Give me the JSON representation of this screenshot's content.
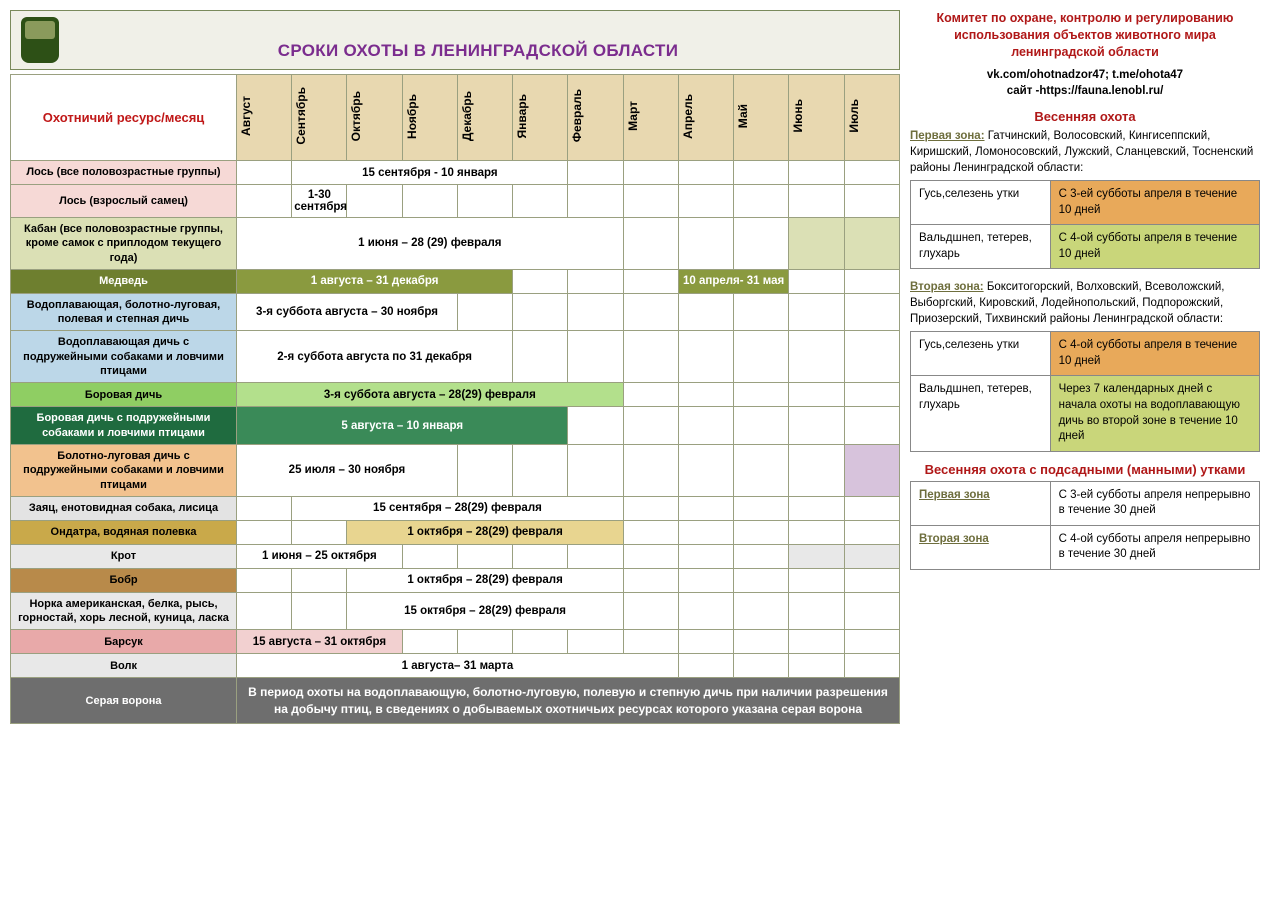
{
  "header": {
    "title": "СРОКИ ОХОТЫ В ЛЕНИНГРАДСКОЙ ОБЛАСТИ",
    "resource_head": "Охотничий ресурс/месяц"
  },
  "months": [
    "Август",
    "Сентябрь",
    "Октябрь",
    "Ноябрь",
    "Декабрь",
    "Январь",
    "Февраль",
    "Март",
    "Апрель",
    "Май",
    "Июнь",
    "Июль"
  ],
  "month_colors": [
    "#e8d8b0",
    "#e8d8b0",
    "#e8d8b0",
    "#e8d8b0",
    "#e8d8b0",
    "#e8d8b0",
    "#e8d8b0",
    "#e8d8b0",
    "#e8d8b0",
    "#e8d8b0",
    "#e8d8b0",
    "#e8d8b0"
  ],
  "rows": [
    {
      "name": "Лось (все половозрастные группы)",
      "label_bg": "#f6d9d6",
      "periods": [
        {
          "start": 1,
          "span": 5,
          "text": "15 сентября - 10 января",
          "bg": "#ffffff"
        }
      ],
      "empty": [
        0,
        6,
        7,
        8,
        9,
        10,
        11
      ]
    },
    {
      "name": "Лось (взрослый самец)",
      "label_bg": "#f6d9d6",
      "periods": [
        {
          "start": 1,
          "span": 1,
          "text": "1-30 сентября",
          "bg": "#ffffff"
        }
      ],
      "empty": [
        0,
        2,
        3,
        4,
        5,
        6,
        7,
        8,
        9,
        10,
        11
      ]
    },
    {
      "name": "Кабан (все половозрастные группы, кроме самок с приплодом текущего года)",
      "label_bg": "#dbe0b5",
      "periods": [
        {
          "start": 0,
          "span": 7,
          "text": "1 июня – 28 (29) февраля",
          "bg": "#ffffff"
        }
      ],
      "empty": [
        7,
        8,
        9
      ],
      "empty_colored": [
        {
          "idx": 10,
          "bg": "#dbe0b5"
        },
        {
          "idx": 11,
          "bg": "#dbe0b5"
        }
      ]
    },
    {
      "name": "Медведь",
      "label_bg": "#6e7f2f",
      "label_color": "#ffffff",
      "periods": [
        {
          "start": 0,
          "span": 5,
          "text": "1 августа – 31 декабря",
          "bg": "#8a9a3f",
          "color": "#fff"
        },
        {
          "start": 8,
          "span": 2,
          "text": "10 апреля- 31 мая",
          "bg": "#8a9a3f",
          "color": "#fff"
        }
      ],
      "empty": [
        5,
        6,
        7,
        10,
        11
      ]
    },
    {
      "name": "Водоплавающая, болотно-луговая, полевая и степная дичь",
      "label_bg": "#bcd7e8",
      "periods": [
        {
          "start": 0,
          "span": 4,
          "text": "3-я суббота августа – 30 ноября",
          "bg": "#ffffff"
        }
      ],
      "empty": [
        4,
        5,
        6,
        7,
        8,
        9,
        10,
        11
      ]
    },
    {
      "name": "Водоплавающая дичь с подружейными собаками и ловчими птицами",
      "label_bg": "#bcd7e8",
      "periods": [
        {
          "start": 0,
          "span": 5,
          "text": "2-я суббота августа по 31 декабря",
          "bg": "#ffffff"
        }
      ],
      "empty": [
        5,
        6,
        7,
        8,
        9,
        10,
        11
      ]
    },
    {
      "name": "Боровая дичь",
      "label_bg": "#8fce63",
      "periods": [
        {
          "start": 0,
          "span": 7,
          "text": "3-я суббота августа – 28(29) февраля",
          "bg": "#b3e08c"
        }
      ],
      "empty": [
        7,
        8,
        9,
        10,
        11
      ]
    },
    {
      "name": "Боровая дичь с подружейными собаками и ловчими птицами",
      "label_bg": "#1f6b3f",
      "label_color": "#ffffff",
      "periods": [
        {
          "start": 0,
          "span": 6,
          "text": "5 августа – 10 января",
          "bg": "#3a8a58",
          "color": "#fff"
        }
      ],
      "empty": [
        6,
        7,
        8,
        9,
        10,
        11
      ]
    },
    {
      "name": "Болотно-луговая дичь с подружейными собаками и ловчими птицами",
      "label_bg": "#f2c28e",
      "periods": [
        {
          "start": 0,
          "span": 4,
          "text": "25 июля – 30 ноября",
          "bg": "#ffffff"
        }
      ],
      "empty": [
        4,
        5,
        6,
        7,
        8,
        9,
        10
      ],
      "empty_colored": [
        {
          "idx": 11,
          "bg": "#d7c3dc"
        }
      ]
    },
    {
      "name": "Заяц, енотовидная собака, лисица",
      "label_bg": "#e3e3e3",
      "periods": [
        {
          "start": 1,
          "span": 6,
          "text": "15 сентября – 28(29) февраля",
          "bg": "#ffffff"
        }
      ],
      "empty": [
        0,
        7,
        8,
        9,
        10,
        11
      ]
    },
    {
      "name": "Ондатра, водяная полевка",
      "label_bg": "#c9a94a",
      "periods": [
        {
          "start": 2,
          "span": 5,
          "text": "1 октября – 28(29) февраля",
          "bg": "#e8d590"
        }
      ],
      "empty": [
        0,
        1,
        7,
        8,
        9,
        10,
        11
      ]
    },
    {
      "name": "Крот",
      "label_bg": "#e8e8e8",
      "periods": [
        {
          "start": 0,
          "span": 3,
          "text": "1 июня – 25 октября",
          "bg": "#ffffff"
        }
      ],
      "empty": [
        3,
        4,
        5,
        6,
        7,
        8,
        9
      ],
      "empty_colored": [
        {
          "idx": 10,
          "bg": "#e8e8e8"
        },
        {
          "idx": 11,
          "bg": "#e8e8e8"
        }
      ]
    },
    {
      "name": "Бобр",
      "label_bg": "#b88a4a",
      "periods": [
        {
          "start": 2,
          "span": 5,
          "text": "1 октября – 28(29) февраля",
          "bg": "#ffffff"
        }
      ],
      "empty": [
        0,
        1,
        7,
        8,
        9,
        10,
        11
      ]
    },
    {
      "name": "Норка американская, белка, рысь, горностай, хорь лесной, куница, ласка",
      "label_bg": "#e8e8e8",
      "periods": [
        {
          "start": 2,
          "span": 5,
          "text": "15 октября – 28(29) февраля",
          "bg": "#ffffff"
        }
      ],
      "empty": [
        0,
        1,
        7,
        8,
        9,
        10,
        11
      ]
    },
    {
      "name": "Барсук",
      "label_bg": "#e8a9a9",
      "periods": [
        {
          "start": 0,
          "span": 3,
          "text": "15 августа – 31 октября",
          "bg": "#f2d0d0"
        }
      ],
      "empty": [
        3,
        4,
        5,
        6,
        7,
        8,
        9,
        10,
        11
      ]
    },
    {
      "name": "Волк",
      "label_bg": "#e8e8e8",
      "periods": [
        {
          "start": 0,
          "span": 8,
          "text": "1 августа– 31 марта",
          "bg": "#ffffff"
        }
      ],
      "empty": [
        8,
        9,
        10,
        11
      ]
    }
  ],
  "crow": {
    "label": "Серая ворона",
    "note": "В период охоты на водоплавающую, болотно-луговую, полевую и степную дичь при наличии разрешения на добычу птиц, в сведениях о добываемых охотничьих ресурсах которого указана серая ворона"
  },
  "side": {
    "committee": "Комитет по охране, контролю и регулированию использования объектов животного мира ленинградской области",
    "links_l1": "vk.com/ohotnadzor47;   t.me/ohota47",
    "links_l2": "сайт -https://fauna.lenobl.ru/",
    "spring_title": "Весенняя охота",
    "zone1_label": "Первая зона:",
    "zone1_desc": " Гатчинский, Волосовский, Кингисеппский, Киришский, Ломоносовский, Лужский, Сланцевский, Тосненский районы Ленинградской области:",
    "zone1_rows": [
      {
        "a": "Гусь,селезень утки",
        "b": "С 3-ей субботы апреля в течение 10 дней",
        "b_bg": "#e8a95a"
      },
      {
        "a": "Вальдшнеп, тетерев, глухарь",
        "b": "С 4-ой субботы апреля в течение 10 дней",
        "b_bg": "#c9d67a"
      }
    ],
    "zone2_label": "Вторая зона:",
    "zone2_desc": " Бокситогорский, Волховский, Всеволожский, Выборгский, Кировский, Лодейнопольский, Подпорожский, Приозерский, Тихвинский районы Ленинградской области:",
    "zone2_rows": [
      {
        "a": "Гусь,селезень утки",
        "b": "С 4-ой субботы апреля в течение 10 дней",
        "b_bg": "#e8a95a"
      },
      {
        "a": "Вальдшнеп, тетерев, глухарь",
        "b": "Через 7 календарных дней с начала охоты на водоплавающую дичь во второй зоне в течение 10 дней",
        "b_bg": "#c9d67a"
      }
    ],
    "decoy_title": "Весенняя охота с подсадными (манными) утками",
    "decoy_rows": [
      {
        "a": "Первая зона",
        "b": "С 3-ей субботы апреля непрерывно в течение 30 дней"
      },
      {
        "a": "Вторая зона",
        "b": "С 4-ой субботы апреля непрерывно в течение 30 дней"
      }
    ]
  }
}
